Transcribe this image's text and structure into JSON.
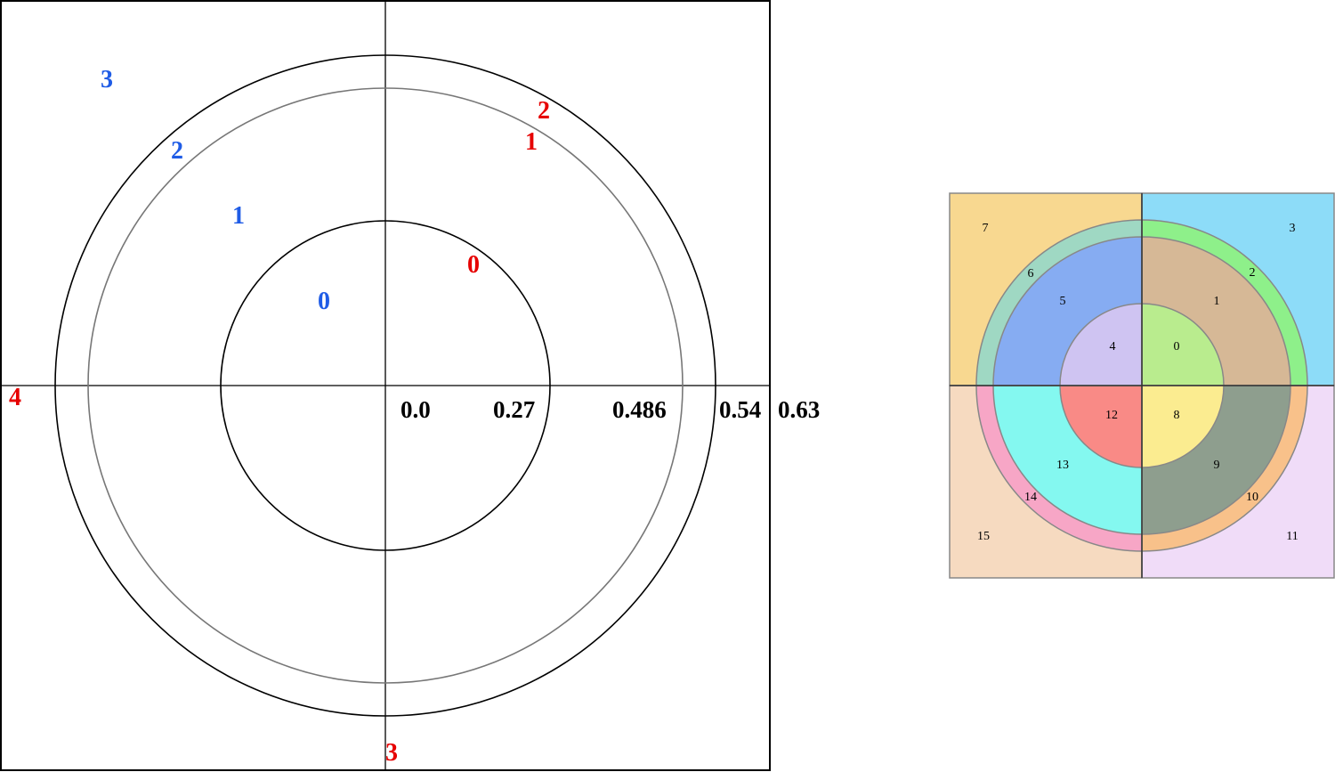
{
  "left_panel": {
    "radius_labels": [
      "0.0",
      "0.27",
      "0.486",
      "0.54",
      "0.63"
    ],
    "blue_labels": [
      "0",
      "1",
      "2",
      "3"
    ],
    "red_labels": [
      "0",
      "1",
      "2",
      "3",
      "4"
    ],
    "colors": {
      "blue": "#1f5ce6",
      "red": "#e60000",
      "line": "#000000",
      "ring_gray": "#777777"
    }
  },
  "right_panel": {
    "segments": [
      {
        "id": "0",
        "label": "0",
        "color": "#b9ec8e"
      },
      {
        "id": "1",
        "label": "1",
        "color": "#d6b896"
      },
      {
        "id": "2",
        "label": "2",
        "color": "#8ef08a"
      },
      {
        "id": "3",
        "label": "3",
        "color": "#8ddcf8"
      },
      {
        "id": "4",
        "label": "4",
        "color": "#cfc4f2"
      },
      {
        "id": "5",
        "label": "5",
        "color": "#86acf2"
      },
      {
        "id": "6",
        "label": "6",
        "color": "#9fd8c3"
      },
      {
        "id": "7",
        "label": "7",
        "color": "#f8d890"
      },
      {
        "id": "8",
        "label": "8",
        "color": "#fbec90"
      },
      {
        "id": "9",
        "label": "9",
        "color": "#8e9e8e"
      },
      {
        "id": "10",
        "label": "10",
        "color": "#f8c18a"
      },
      {
        "id": "11",
        "label": "11",
        "color": "#f0dcf8"
      },
      {
        "id": "12",
        "label": "12",
        "color": "#f98a86"
      },
      {
        "id": "13",
        "label": "13",
        "color": "#84f8f0"
      },
      {
        "id": "14",
        "label": "14",
        "color": "#f7a6c6"
      },
      {
        "id": "15",
        "label": "15",
        "color": "#f6dac0"
      }
    ]
  }
}
